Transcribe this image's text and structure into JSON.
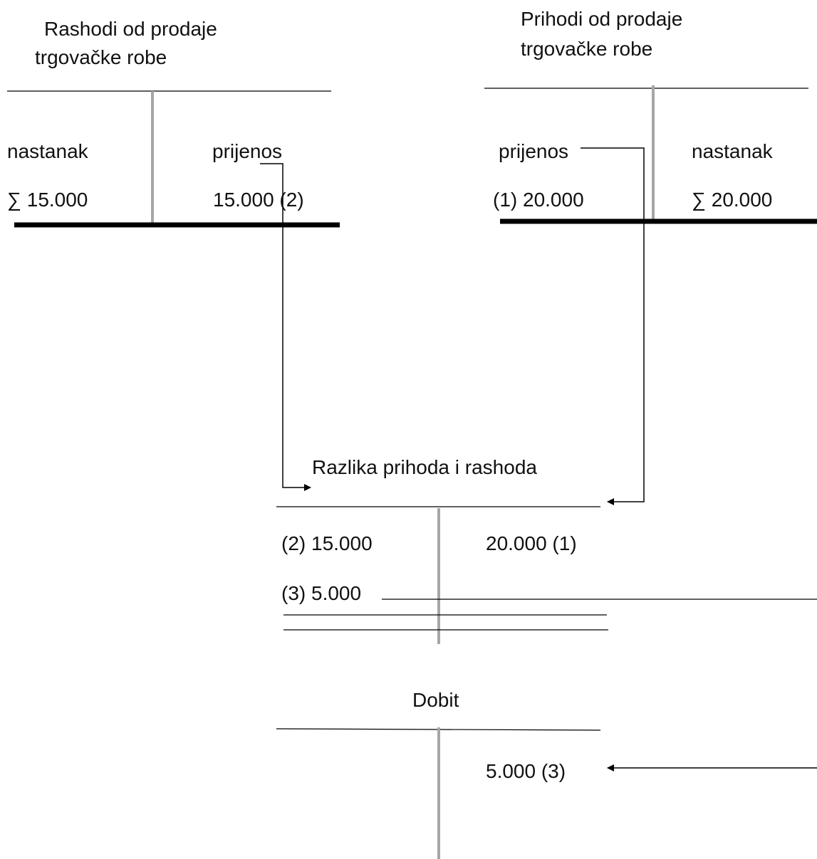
{
  "accounts": {
    "rashodi": {
      "title_line1": "Rashodi od prodaje",
      "title_line2": "trgovačke robe",
      "left_header": "nastanak",
      "right_header": "prijenos",
      "left_entry": "∑ 15.000",
      "right_entry": "15.000 (2)"
    },
    "prihodi": {
      "title_line1": "Prihodi od prodaje",
      "title_line2": "trgovačke robe",
      "left_header": "prijenos",
      "right_header": "nastanak",
      "left_entry": "(1) 20.000",
      "right_entry": "∑ 20.000"
    },
    "razlika": {
      "title": "Razlika prihoda i rashoda",
      "left_entry_1": "(2) 15.000",
      "left_entry_2": "(3) 5.000",
      "right_entry_1": "20.000 (1)"
    },
    "dobit": {
      "title": "Dobit",
      "right_entry_1": "5.000 (3)"
    }
  },
  "colors": {
    "line": "#000000",
    "divider": "#a6a6a6"
  }
}
